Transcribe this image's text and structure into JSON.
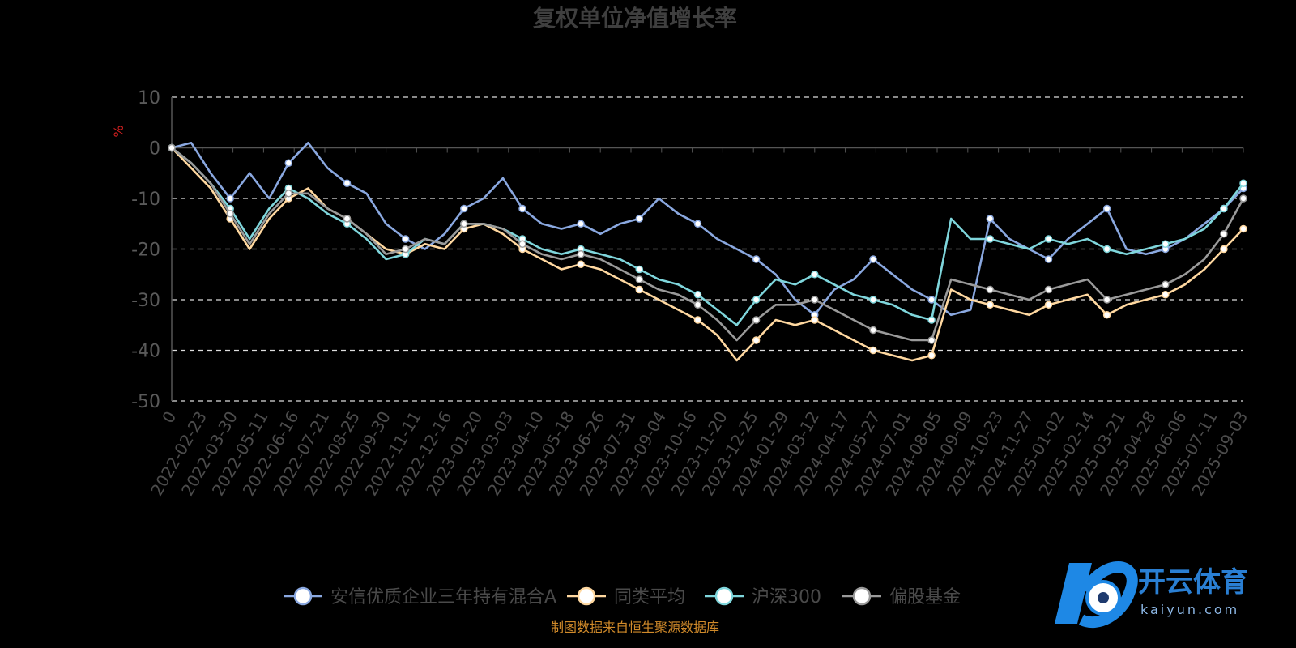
{
  "chart_data": {
    "type": "line",
    "title": "复权单位净值增长率",
    "ylabel": "%",
    "ylim": [
      -50,
      10
    ],
    "yticks": [
      10,
      0,
      -10,
      -20,
      -30,
      -40,
      -50
    ],
    "grid": true,
    "legend_position": "bottom",
    "x_tick_labels": [
      "0",
      "2022-02-23",
      "2022-03-30",
      "2022-05-11",
      "2022-06-16",
      "2022-07-21",
      "2022-08-25",
      "2022-09-30",
      "2022-11-11",
      "2022-12-16",
      "2023-01-20",
      "2023-03-03",
      "2023-04-10",
      "2023-05-18",
      "2023-06-26",
      "2023-07-31",
      "2023-09-04",
      "2023-10-16",
      "2023-11-20",
      "2023-12-25",
      "2024-01-29",
      "2024-03-12",
      "2024-04-17",
      "2024-05-27",
      "2024-07-01",
      "2024-08-05",
      "2024-09-09",
      "2024-10-23",
      "2024-11-27",
      "2025-01-02",
      "2025-02-14",
      "2025-03-21",
      "2025-04-28",
      "2025-06-06",
      "2025-07-11",
      "2025-09-03"
    ],
    "series": [
      {
        "name": "安信优质企业三年持有混合A",
        "color": "#8aa8e0",
        "values": [
          0,
          1,
          -5,
          -10,
          -5,
          -10,
          -3,
          1,
          -4,
          -7,
          -9,
          -15,
          -18,
          -20,
          -17,
          -12,
          -10,
          -6,
          -12,
          -15,
          -16,
          -15,
          -17,
          -15,
          -14,
          -10,
          -13,
          -15,
          -18,
          -20,
          -22,
          -25,
          -30,
          -33,
          -28,
          -26,
          -22,
          -25,
          -28,
          -30,
          -33,
          -32,
          -14,
          -18,
          -20,
          -22,
          -18,
          -15,
          -12,
          -20,
          -21,
          -20,
          -18,
          -15,
          -12,
          -8
        ]
      },
      {
        "name": "同类平均",
        "color": "#ffd8a0",
        "values": [
          0,
          -4,
          -8,
          -14,
          -20,
          -14,
          -10,
          -8,
          -12,
          -14,
          -17,
          -20,
          -21,
          -19,
          -20,
          -16,
          -15,
          -17,
          -20,
          -22,
          -24,
          -23,
          -24,
          -26,
          -28,
          -30,
          -32,
          -34,
          -37,
          -42,
          -38,
          -34,
          -35,
          -34,
          -36,
          -38,
          -40,
          -41,
          -42,
          -41,
          -28,
          -30,
          -31,
          -32,
          -33,
          -31,
          -30,
          -29,
          -33,
          -31,
          -30,
          -29,
          -27,
          -24,
          -20,
          -16
        ]
      },
      {
        "name": "沪深300",
        "color": "#7fd6dc",
        "values": [
          0,
          -3,
          -7,
          -12,
          -18,
          -12,
          -8,
          -10,
          -13,
          -15,
          -18,
          -22,
          -21,
          -18,
          -19,
          -15,
          -15,
          -16,
          -18,
          -20,
          -21,
          -20,
          -21,
          -22,
          -24,
          -26,
          -27,
          -29,
          -32,
          -35,
          -30,
          -26,
          -27,
          -25,
          -27,
          -29,
          -30,
          -31,
          -33,
          -34,
          -14,
          -18,
          -18,
          -19,
          -20,
          -18,
          -19,
          -18,
          -20,
          -21,
          -20,
          -19,
          -18,
          -16,
          -12,
          -7
        ]
      },
      {
        "name": "偏股基金",
        "color": "#9a9a9a",
        "values": [
          0,
          -3,
          -7,
          -13,
          -19,
          -13,
          -9,
          -9,
          -12,
          -14,
          -17,
          -21,
          -20,
          -18,
          -19,
          -15,
          -15,
          -16,
          -19,
          -21,
          -22,
          -21,
          -22,
          -24,
          -26,
          -28,
          -29,
          -31,
          -34,
          -38,
          -34,
          -31,
          -31,
          -30,
          -32,
          -34,
          -36,
          -37,
          -38,
          -38,
          -26,
          -27,
          -28,
          -29,
          -30,
          -28,
          -27,
          -26,
          -30,
          -29,
          -28,
          -27,
          -25,
          -22,
          -17,
          -10
        ]
      }
    ]
  },
  "source_note": "制图数据来自恒生聚源数据库",
  "watermark": {
    "name": "开云体育",
    "domain": "kaiyun.com"
  },
  "colors": {
    "background": "#000000",
    "grid": "#dddddd",
    "axis": "#555555"
  }
}
